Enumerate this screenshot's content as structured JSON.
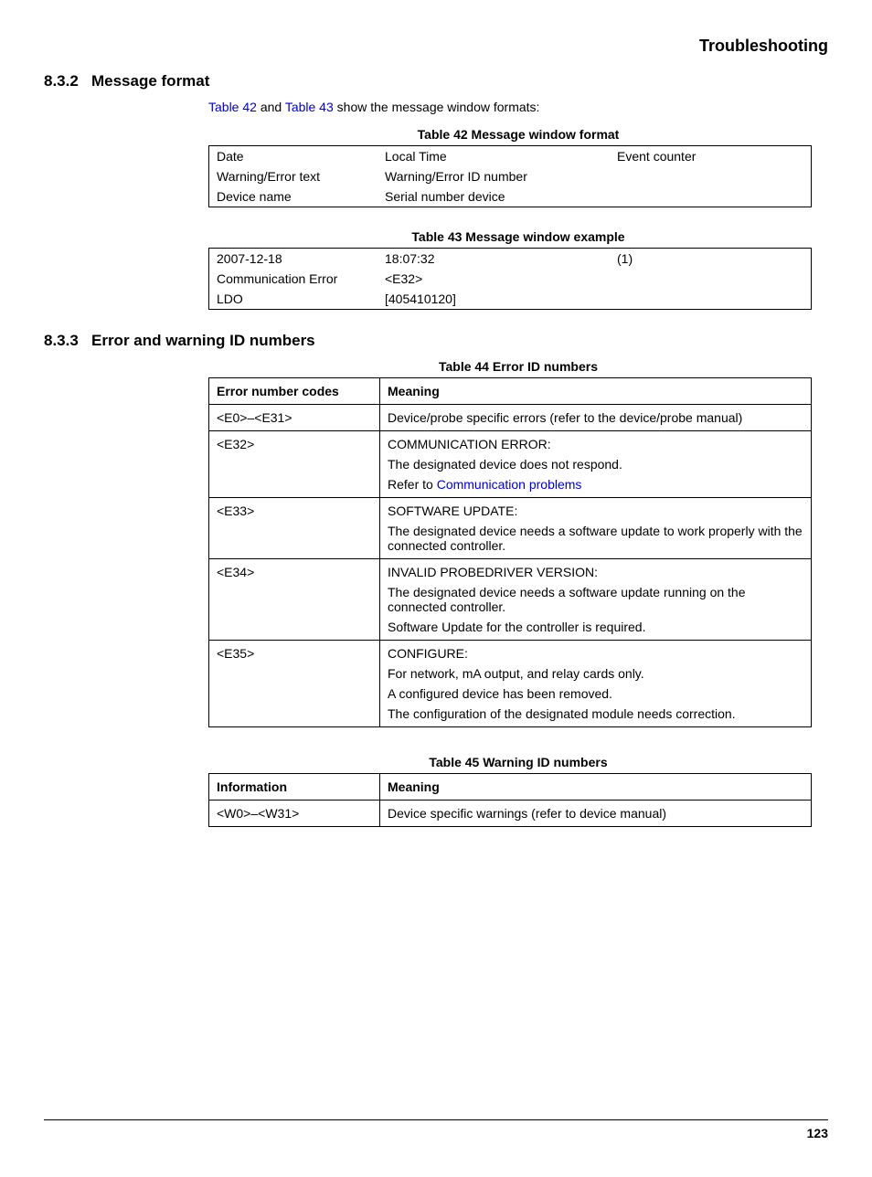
{
  "colors": {
    "text": "#000000",
    "background": "#ffffff",
    "link": "#0000cc",
    "border": "#000000"
  },
  "typography": {
    "base_font": "Arial, Helvetica, sans-serif",
    "base_size_pt": 10.5,
    "heading_size_pt": 13,
    "page_header_size_pt": 13.5
  },
  "page_header": "Troubleshooting",
  "page_number": "123",
  "section_832": {
    "number": "8.3.2",
    "title": "Message format",
    "intro_prefix": "",
    "link1": "Table 42",
    "intro_mid": " and ",
    "link2": "Table 43",
    "intro_suffix": " show the message window formats:"
  },
  "table42": {
    "caption": "Table 42  Message window format",
    "rows": [
      [
        "Date",
        "Local Time",
        "Event counter"
      ],
      [
        "Warning/Error text",
        "Warning/Error ID number",
        ""
      ],
      [
        "Device name",
        "Serial number device",
        ""
      ]
    ]
  },
  "table43": {
    "caption": "Table 43  Message window example",
    "rows": [
      [
        "2007-12-18",
        "18:07:32",
        "(1)"
      ],
      [
        "Communication Error",
        "<E32>",
        ""
      ],
      [
        "LDO",
        "[405410120]",
        ""
      ]
    ]
  },
  "section_833": {
    "number": "8.3.3",
    "title": "Error and warning ID numbers"
  },
  "table44": {
    "caption": "Table 44  Error ID numbers",
    "header": [
      "Error number codes",
      "Meaning"
    ],
    "rows": [
      {
        "code": "<E0>–<E31>",
        "lines": [
          "Device/probe specific errors (refer to the device/probe manual)"
        ],
        "link_line": null
      },
      {
        "code": "<E32>",
        "lines": [
          "COMMUNICATION ERROR:",
          "The designated device does not respond."
        ],
        "link_prefix": "Refer to ",
        "link_text": "Communication problems"
      },
      {
        "code": "<E33>",
        "lines": [
          "SOFTWARE UPDATE:",
          "The designated device needs a software update to work properly with the connected controller."
        ]
      },
      {
        "code": "<E34>",
        "lines": [
          "INVALID PROBEDRIVER VERSION:",
          "The designated device needs a software update running on the connected controller.",
          "Software Update for the controller is required."
        ]
      },
      {
        "code": "<E35>",
        "lines": [
          "CONFIGURE:",
          "For network, mA output, and relay cards only.",
          "A configured device has been removed.",
          "The configuration of the designated module needs correction."
        ]
      }
    ]
  },
  "table45": {
    "caption": "Table 45  Warning ID numbers",
    "header": [
      "Information",
      "Meaning"
    ],
    "rows": [
      {
        "code": "<W0>–<W31>",
        "meaning": "Device specific warnings (refer to device manual)"
      }
    ]
  }
}
